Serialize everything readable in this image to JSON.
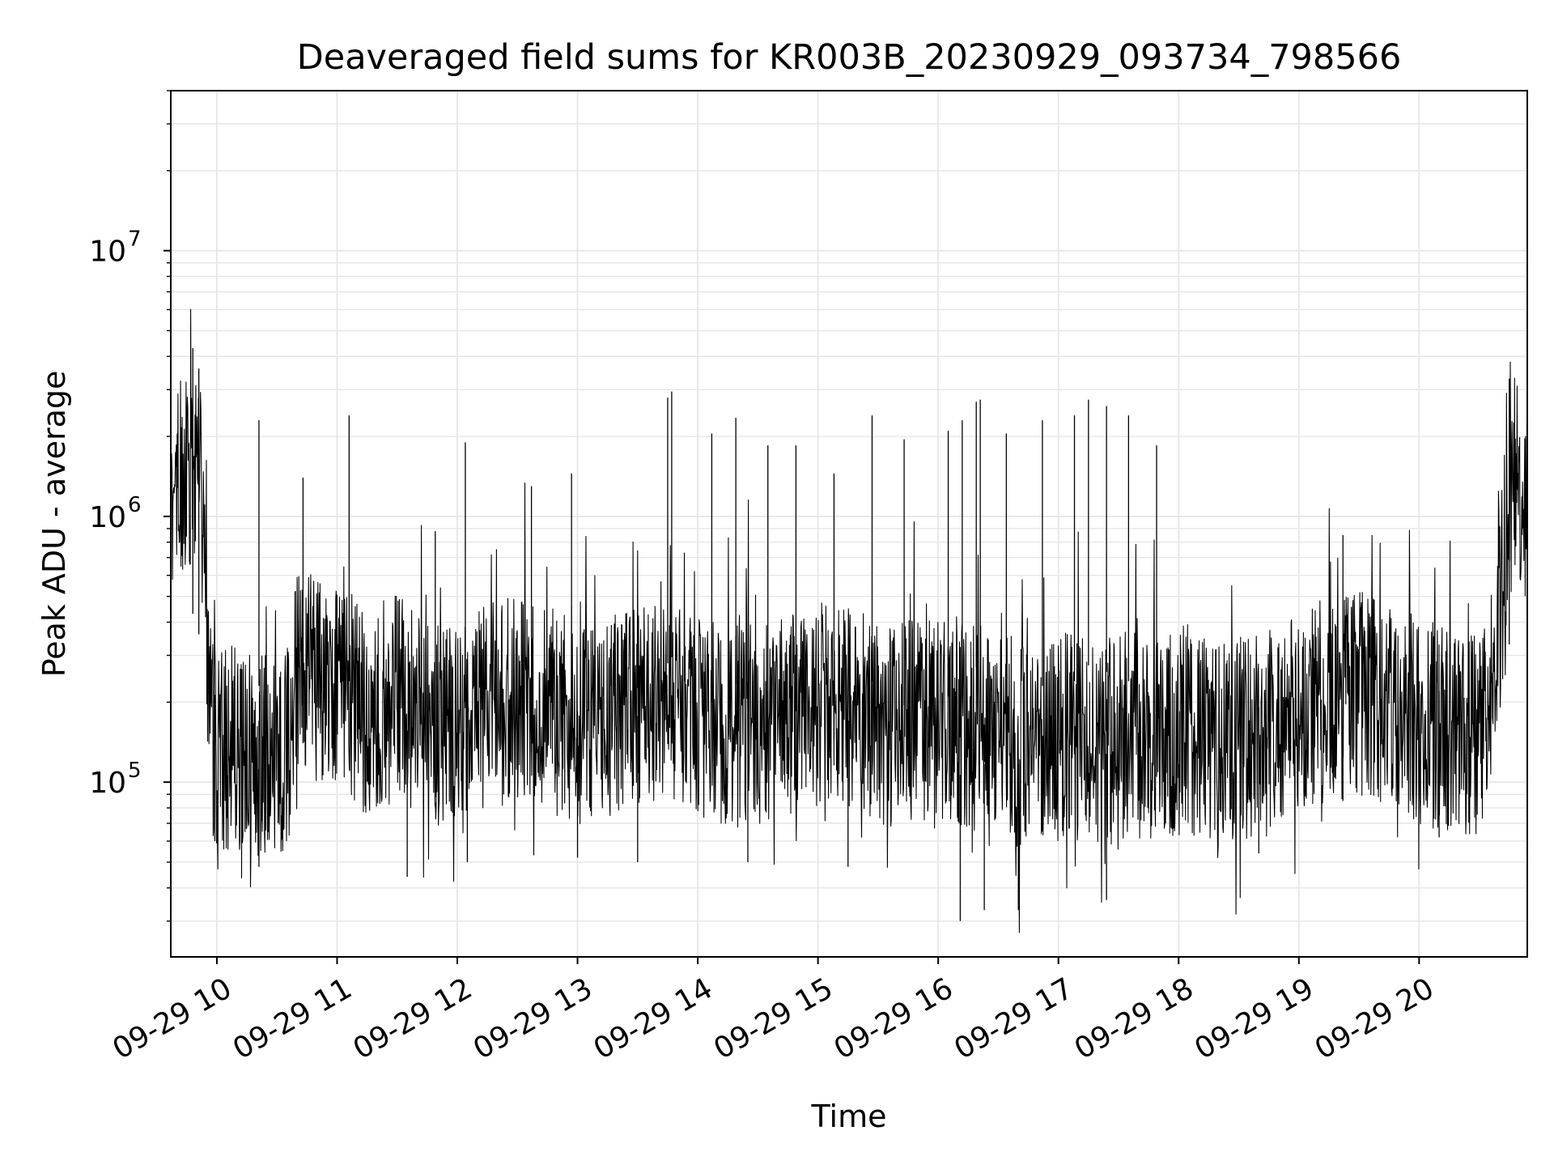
{
  "chart_data": {
    "type": "line",
    "title": "Deaveraged field sums for KR003B_20230929_093734_798566",
    "xlabel": "Time",
    "ylabel": "Peak ADU - average",
    "yscale": "log",
    "xlim": [
      "2023-09-29 09:37",
      "2023-09-29 20:54"
    ],
    "ylim": [
      22000,
      40000000
    ],
    "grid": true,
    "line_color": "#000000",
    "grid_color": "#e6e6e6",
    "x_ticks": [
      {
        "value": "2023-09-29 10:00",
        "label": "09-29 10"
      },
      {
        "value": "2023-09-29 11:00",
        "label": "09-29 11"
      },
      {
        "value": "2023-09-29 12:00",
        "label": "09-29 12"
      },
      {
        "value": "2023-09-29 13:00",
        "label": "09-29 13"
      },
      {
        "value": "2023-09-29 14:00",
        "label": "09-29 14"
      },
      {
        "value": "2023-09-29 15:00",
        "label": "09-29 15"
      },
      {
        "value": "2023-09-29 16:00",
        "label": "09-29 16"
      },
      {
        "value": "2023-09-29 17:00",
        "label": "09-29 17"
      },
      {
        "value": "2023-09-29 18:00",
        "label": "09-29 18"
      },
      {
        "value": "2023-09-29 19:00",
        "label": "09-29 19"
      },
      {
        "value": "2023-09-29 20:00",
        "label": "09-29 20"
      }
    ],
    "y_ticks": [
      {
        "value": 100000,
        "base": "10",
        "exp": "5"
      },
      {
        "value": 1000000,
        "base": "10",
        "exp": "6"
      },
      {
        "value": 10000000,
        "base": "10",
        "exp": "7"
      }
    ],
    "series": [
      {
        "x": [
          "09:37",
          "09:43",
          "09:49",
          "09:52",
          "09:54",
          "09:56",
          "09:58",
          "10:05",
          "10:10",
          "10:15",
          "10:20",
          "10:25",
          "10:30",
          "10:35",
          "10:40",
          "10:45",
          "10:50",
          "10:55",
          "11:00",
          "11:05",
          "11:10",
          "11:15",
          "11:20",
          "11:25",
          "11:30",
          "11:35",
          "11:40",
          "11:45",
          "11:50",
          "11:55",
          "12:00",
          "12:10",
          "12:20",
          "12:30",
          "12:40",
          "12:50",
          "13:00",
          "13:10",
          "13:20",
          "13:30",
          "13:40",
          "13:50",
          "14:00",
          "14:10",
          "14:20",
          "14:30",
          "14:40",
          "14:50",
          "15:00",
          "15:10",
          "15:20",
          "15:30",
          "15:40",
          "15:50",
          "16:00",
          "16:10",
          "16:20",
          "16:30",
          "16:40",
          "16:50",
          "17:00",
          "17:10",
          "17:20",
          "17:30",
          "17:40",
          "17:50",
          "18:00",
          "18:10",
          "18:20",
          "18:30",
          "18:40",
          "18:50",
          "19:00",
          "19:10",
          "19:20",
          "19:30",
          "19:40",
          "19:50",
          "20:00",
          "20:10",
          "20:20",
          "20:30",
          "20:35",
          "20:40",
          "20:45",
          "20:50",
          "20:54"
        ],
        "mid": [
          1500000,
          1400000,
          1300000,
          1200000,
          600000,
          250000,
          150000,
          130000,
          140000,
          120000,
          130000,
          125000,
          120000,
          130000,
          250000,
          260000,
          240000,
          250000,
          230000,
          220000,
          200000,
          180000,
          190000,
          200000,
          210000,
          200000,
          180000,
          170000,
          160000,
          170000,
          180000,
          190000,
          200000,
          210000,
          200000,
          180000,
          170000,
          175000,
          180000,
          185000,
          190000,
          200000,
          180000,
          170000,
          160000,
          170000,
          180000,
          190000,
          200000,
          190000,
          180000,
          170000,
          160000,
          170000,
          180000,
          170000,
          160000,
          150000,
          140000,
          145000,
          150000,
          145000,
          140000,
          145000,
          150000,
          145000,
          150000,
          145000,
          140000,
          145000,
          150000,
          160000,
          180000,
          200000,
          210000,
          220000,
          200000,
          190000,
          170000,
          160000,
          150000,
          150000,
          200000,
          400000,
          1200000,
          1300000,
          1200000
        ],
        "peaks": [
          {
            "x": "09:48",
            "y": 4300000
          },
          {
            "x": "09:51",
            "y": 3600000
          },
          {
            "x": "10:21",
            "y": 2300000
          },
          {
            "x": "10:43",
            "y": 1400000
          },
          {
            "x": "11:06",
            "y": 2400000
          },
          {
            "x": "11:49",
            "y": 880000
          },
          {
            "x": "12:04",
            "y": 1900000
          },
          {
            "x": "12:37",
            "y": 1300000
          },
          {
            "x": "12:57",
            "y": 1450000
          },
          {
            "x": "13:45",
            "y": 2800000
          },
          {
            "x": "13:47",
            "y": 2950000
          },
          {
            "x": "14:07",
            "y": 2050000
          },
          {
            "x": "14:19",
            "y": 2350000
          },
          {
            "x": "14:35",
            "y": 1850000
          },
          {
            "x": "14:49",
            "y": 1850000
          },
          {
            "x": "15:08",
            "y": 1450000
          },
          {
            "x": "15:27",
            "y": 2400000
          },
          {
            "x": "15:43",
            "y": 1950000
          },
          {
            "x": "16:05",
            "y": 2100000
          },
          {
            "x": "16:12",
            "y": 2300000
          },
          {
            "x": "16:19",
            "y": 2700000
          },
          {
            "x": "16:21",
            "y": 2750000
          },
          {
            "x": "16:34",
            "y": 2050000
          },
          {
            "x": "16:52",
            "y": 2300000
          },
          {
            "x": "17:08",
            "y": 2400000
          },
          {
            "x": "17:15",
            "y": 2750000
          },
          {
            "x": "17:24",
            "y": 2600000
          },
          {
            "x": "17:35",
            "y": 2400000
          },
          {
            "x": "17:49",
            "y": 1850000
          },
          {
            "x": "19:22",
            "y": 850000
          },
          {
            "x": "20:45",
            "y": 3300000
          }
        ],
        "troughs": [
          {
            "x": "09:59",
            "y": 60000
          },
          {
            "x": "10:21",
            "y": 48000
          },
          {
            "x": "11:35",
            "y": 44000
          },
          {
            "x": "12:05",
            "y": 50000
          },
          {
            "x": "13:00",
            "y": 52000
          },
          {
            "x": "13:30",
            "y": 50000
          },
          {
            "x": "14:25",
            "y": 50000
          },
          {
            "x": "15:15",
            "y": 48000
          },
          {
            "x": "16:11",
            "y": 30000
          },
          {
            "x": "16:23",
            "y": 33000
          },
          {
            "x": "16:40",
            "y": 33000
          },
          {
            "x": "17:24",
            "y": 36000
          },
          {
            "x": "18:40",
            "y": 54000
          },
          {
            "x": "20:10",
            "y": 62000
          }
        ]
      }
    ]
  }
}
